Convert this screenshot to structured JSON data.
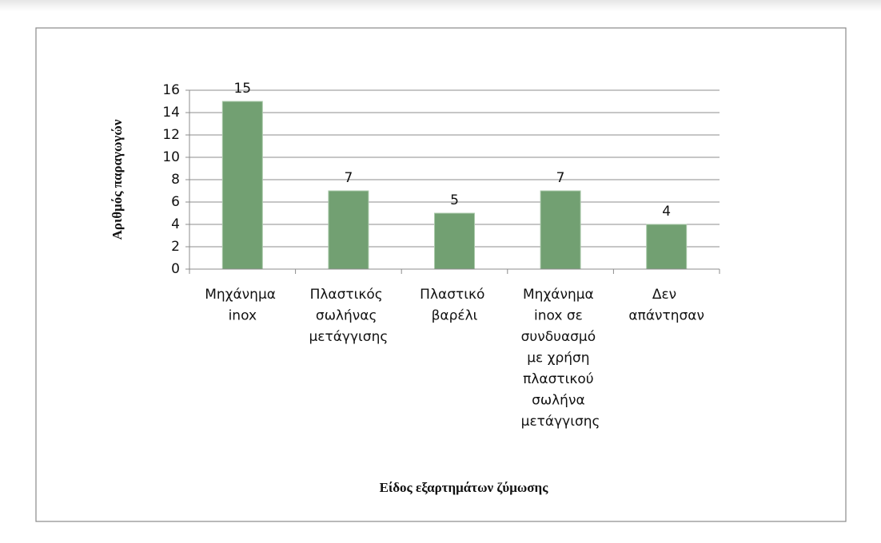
{
  "chart_data": {
    "type": "bar",
    "categories": [
      "Μηχάνημα inox",
      "Πλαστικός σωλήνας μετάγγισης",
      "Πλαστικό βαρέλι",
      "Μηχάνημα inox σε συνδυασμό με χρήση πλαστικού σωλήνα μετάγγισης",
      "Δεν απάντησαν"
    ],
    "values": [
      15,
      7,
      5,
      7,
      4
    ],
    "color": "#72a072",
    "ylim": [
      0,
      16
    ],
    "yticks": [
      0,
      2,
      4,
      6,
      8,
      10,
      12,
      14,
      16
    ],
    "grid": true,
    "x_label": "Είδος εξαρτημάτων  ζύμωσης",
    "y_label": "Αριθμός παραγωγών"
  }
}
